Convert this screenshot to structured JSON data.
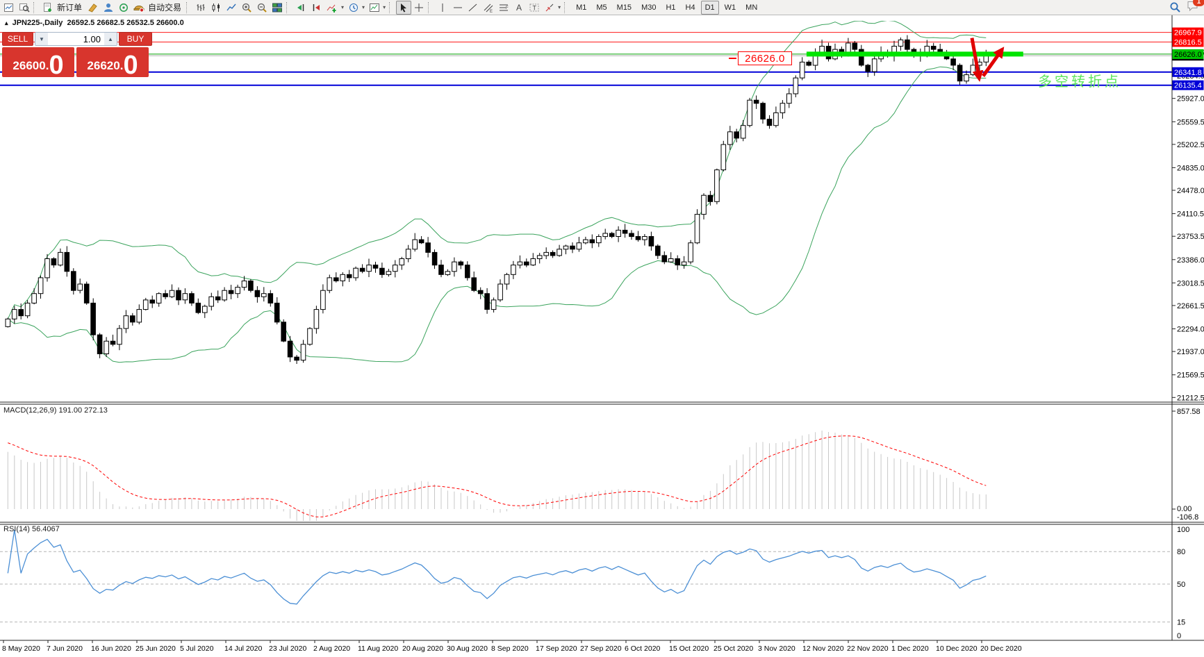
{
  "toolbar": {
    "new_order_label": "新订单",
    "autotrading_label": "自动交易",
    "timeframes": [
      "M1",
      "M5",
      "M15",
      "M30",
      "H1",
      "H4",
      "D1",
      "W1",
      "MN"
    ],
    "active_timeframe": "D1",
    "notification_badge": "1",
    "icons": [
      "new-chart",
      "profiles",
      "new-order",
      "history",
      "experts",
      "signals",
      "autotrading",
      "bar-chart",
      "candlestick-chart",
      "line-chart",
      "zoom-in",
      "zoom-out",
      "tile-windows",
      "auto-scroll",
      "chart-shift",
      "indicators",
      "periods",
      "templates",
      "cursor",
      "crosshair",
      "vertical-line",
      "horizontal-line",
      "trendline",
      "equidistant-channel",
      "fibonacci",
      "text",
      "text-label",
      "arrows",
      "search",
      "chat"
    ]
  },
  "chart_header": {
    "symbol": "JPN225-,Daily",
    "ohlc": "26592.5 26682.5 26532.5 26600.0"
  },
  "trade_panel": {
    "sell_label": "SELL",
    "buy_label": "BUY",
    "volume": "1.00",
    "sell_price_main": "26600",
    "sell_price_pip": "0",
    "buy_price_main": "26620",
    "buy_price_pip": "0"
  },
  "annotations": {
    "level_label": "26626.0",
    "turning_point": "多空转折点"
  },
  "indicator_labels": {
    "macd": "MACD(12,26,9) 191.00 272.13",
    "rsi": "RSI(14) 56.4067"
  },
  "price_axis": {
    "ticks": [
      "26651.5",
      "26284.0",
      "25927.0",
      "25559.5",
      "25202.5",
      "24835.0",
      "24478.0",
      "24110.5",
      "23753.5",
      "23386.0",
      "23018.5",
      "22661.5",
      "22294.0",
      "21937.0",
      "21569.5",
      "21212.5"
    ],
    "badges": [
      {
        "label": "26600.0",
        "bg": "#000000",
        "fg": "#ffffff"
      },
      {
        "label": "26626.0",
        "bg": "#00c400",
        "fg": "#000000"
      },
      {
        "label": "26341.8",
        "bg": "#0000d8",
        "fg": "#ffffff"
      },
      {
        "label": "26135.4",
        "bg": "#0000d8",
        "fg": "#ffffff"
      },
      {
        "label": "26967.9",
        "bg": "#ff0000",
        "fg": "#ffffff"
      },
      {
        "label": "26816.5",
        "bg": "#ff0000",
        "fg": "#ffffff"
      }
    ]
  },
  "macd_axis": {
    "max": "857.58",
    "zero": "0.00",
    "min": "-106.8"
  },
  "rsi_axis": {
    "levels": [
      "100",
      "80",
      "50",
      "15",
      "0"
    ]
  },
  "time_axis": [
    "8 May 2020",
    "7 Jun 2020",
    "16 Jun 2020",
    "25 Jun 2020",
    "5 Jul 2020",
    "14 Jul 2020",
    "23 Jul 2020",
    "2 Aug 2020",
    "11 Aug 2020",
    "20 Aug 2020",
    "30 Aug 2020",
    "8 Sep 2020",
    "17 Sep 2020",
    "27 Sep 2020",
    "6 Oct 2020",
    "15 Oct 2020",
    "25 Oct 2020",
    "3 Nov 2020",
    "12 Nov 2020",
    "22 Nov 2020",
    "1 Dec 2020",
    "10 Dec 2020",
    "20 Dec 2020"
  ],
  "chart_data": {
    "type": "candlestick",
    "symbol": "JPN225",
    "period": "Daily",
    "ohlc_display": "O 26592.5  H 26682.5  L 26532.5  C 26600.0",
    "ylim": [
      21150,
      27150
    ],
    "macd_ylim": [
      -106.8,
      857.58
    ],
    "rsi_ylim": [
      0,
      100
    ],
    "closes": [
      22450,
      22600,
      22500,
      22700,
      22850,
      23100,
      23400,
      23300,
      23500,
      23200,
      22900,
      23000,
      22700,
      22200,
      21900,
      22100,
      22050,
      22300,
      22500,
      22400,
      22600,
      22750,
      22700,
      22850,
      22800,
      22900,
      22750,
      22850,
      22700,
      22550,
      22650,
      22800,
      22750,
      22900,
      22850,
      22950,
      23050,
      22900,
      22800,
      22850,
      22700,
      22400,
      22100,
      21850,
      21800,
      22050,
      22300,
      22600,
      22900,
      23100,
      23050,
      23150,
      23100,
      23250,
      23200,
      23300,
      23250,
      23150,
      23200,
      23300,
      23400,
      23550,
      23700,
      23650,
      23500,
      23300,
      23150,
      23200,
      23350,
      23300,
      23100,
      22900,
      22850,
      22600,
      22750,
      23000,
      23150,
      23300,
      23350,
      23300,
      23400,
      23450,
      23500,
      23450,
      23550,
      23600,
      23550,
      23650,
      23700,
      23650,
      23750,
      23800,
      23750,
      23850,
      23800,
      23750,
      23700,
      23750,
      23600,
      23450,
      23350,
      23400,
      23300,
      23350,
      23650,
      24100,
      24400,
      24300,
      24800,
      25200,
      25400,
      25300,
      25500,
      25900,
      25850,
      25600,
      25500,
      25700,
      25850,
      26000,
      26250,
      26500,
      26450,
      26650,
      26750,
      26550,
      26700,
      26650,
      26800,
      26700,
      26450,
      26350,
      26550,
      26650,
      26600,
      26750,
      26850,
      26700,
      26600,
      26650,
      26750,
      26700,
      26650,
      26550,
      26450,
      26200,
      26300,
      26450,
      26500,
      26600
    ],
    "indicators": [
      {
        "name": "Bollinger Bands",
        "color": "#3aa35c"
      },
      {
        "name": "MACD(12,26,9)",
        "values": "191.00 272.13",
        "hist_color": "#c8c8c8",
        "signal_color": "#ff0000"
      },
      {
        "name": "RSI(14)",
        "value": "56.4067",
        "color": "#4b8fd5"
      }
    ],
    "hlines": [
      {
        "price": 26967.9,
        "color": "#ff1a1a",
        "width": 1
      },
      {
        "price": 26816.5,
        "color": "#ff1a1a",
        "width": 1
      },
      {
        "price": 26626.0,
        "color": "#00a000",
        "width": 1
      },
      {
        "price": 26600.0,
        "color": "#b0b0b0",
        "width": 1
      },
      {
        "price": 26341.8,
        "color": "#0000d8",
        "width": 2
      },
      {
        "price": 26135.4,
        "color": "#0000d8",
        "width": 2
      }
    ],
    "trendline": {
      "price": 26626.0,
      "from_index": 122,
      "to_index": 155,
      "color": "#00e400",
      "width": 7
    },
    "arrows": [
      {
        "from": [
          147.2,
          26880
        ],
        "to": [
          148.3,
          26240
        ],
        "color": "#e00000"
      },
      {
        "from": [
          148.9,
          26280
        ],
        "to": [
          151.8,
          26700
        ],
        "color": "#e00000"
      }
    ]
  }
}
